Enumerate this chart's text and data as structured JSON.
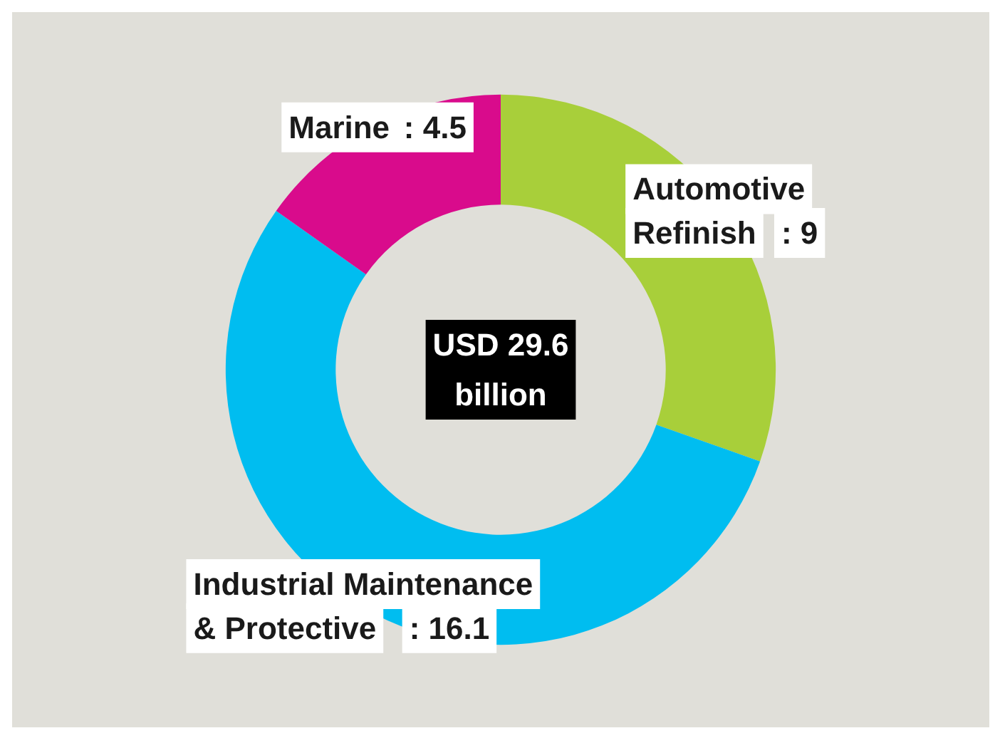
{
  "chart_data": {
    "type": "donut",
    "categories": [
      "Automotive Refinish",
      "Industrial Maintenance & Protective",
      "Marine"
    ],
    "values": [
      9,
      16.1,
      4.5
    ],
    "colors": [
      "#a8cf3a",
      "#00bdf0",
      "#d90b8c"
    ],
    "value_labels": [
      ": 9",
      ": 16.1",
      ": 4.5"
    ],
    "annotations": [
      "USD 29.6\nbillion"
    ]
  }
}
